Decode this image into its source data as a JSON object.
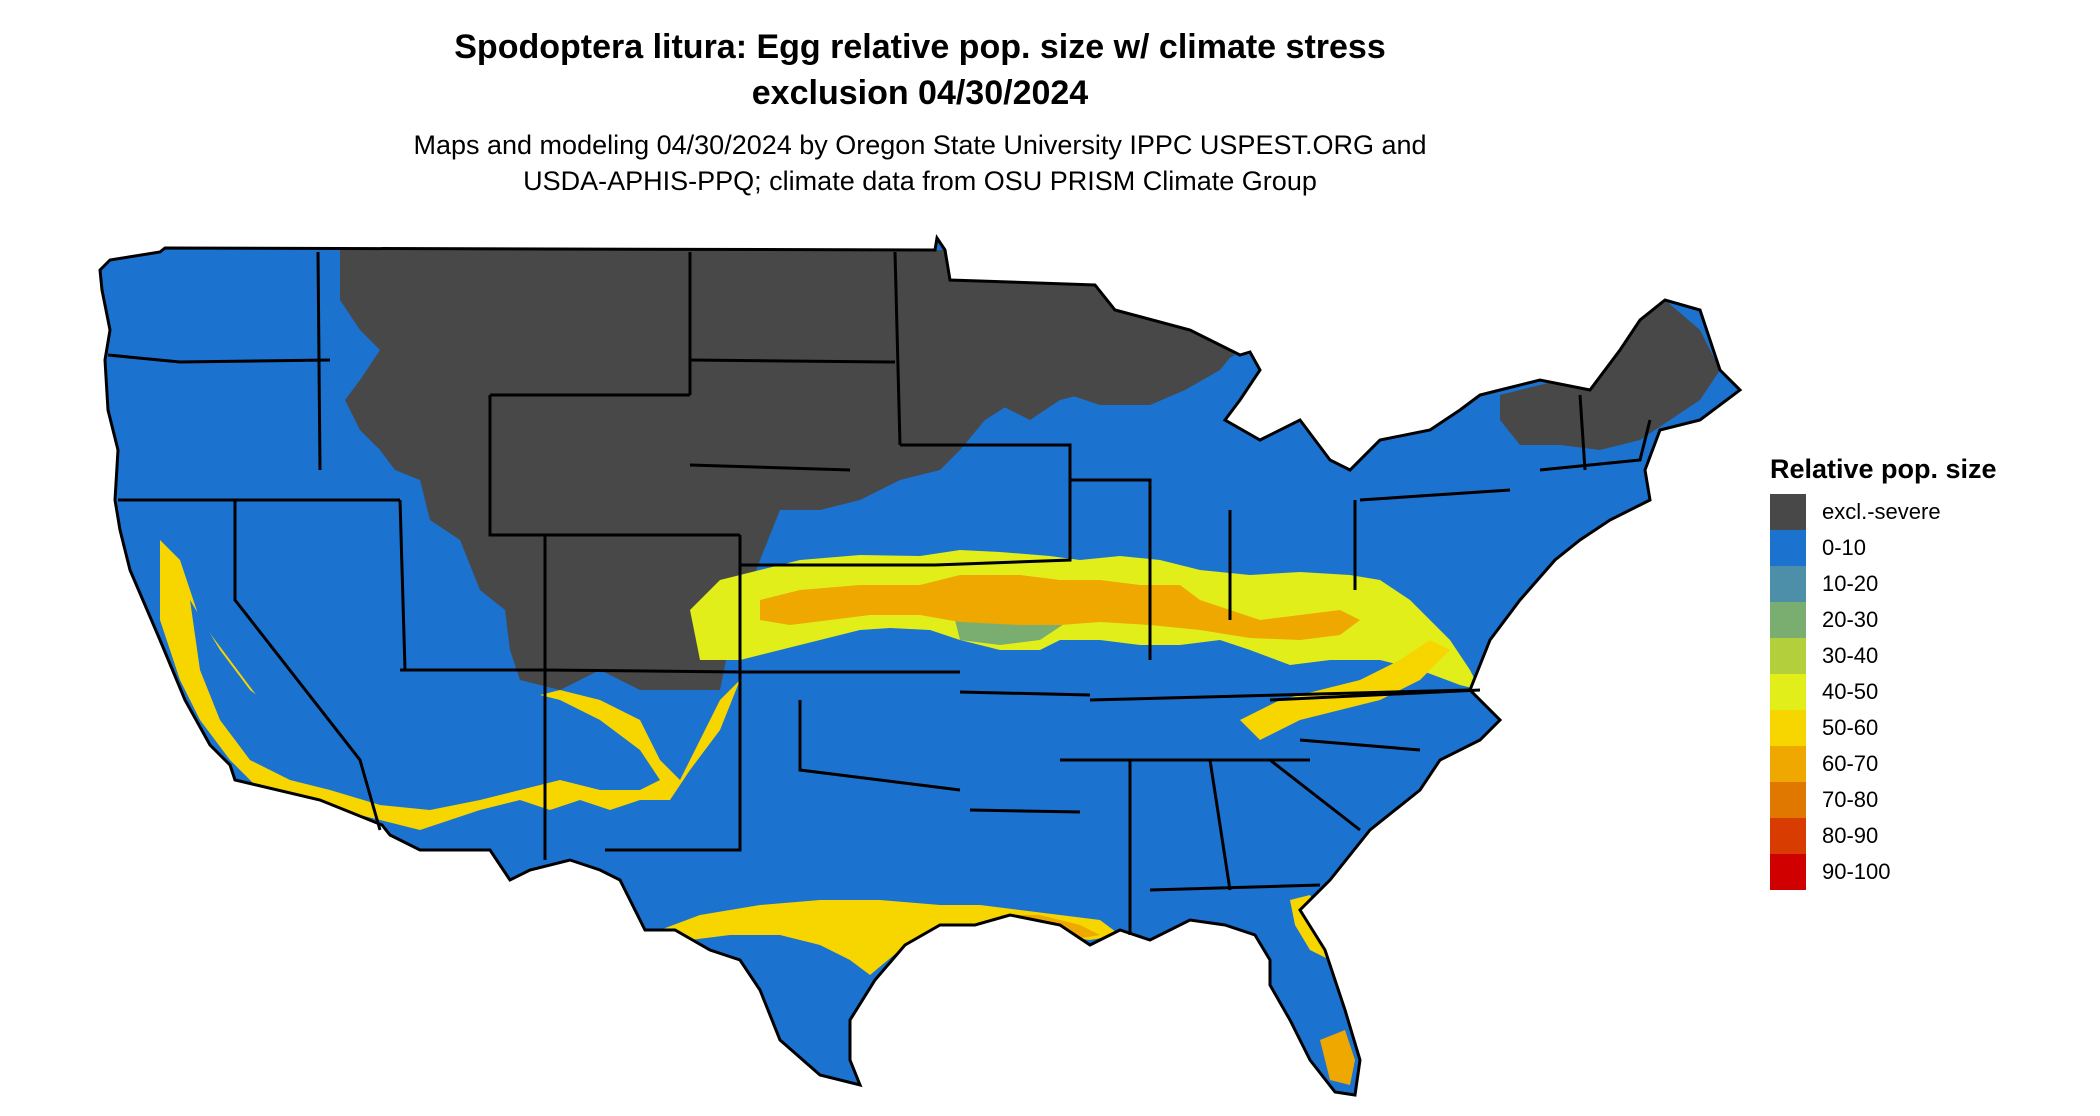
{
  "title": {
    "line1": "Spodoptera litura: Egg relative pop. size w/ climate stress",
    "line2": "exclusion 04/30/2024"
  },
  "subtitle": {
    "line1": "Maps and modeling 04/30/2024 by Oregon State University IPPC USPEST.ORG and",
    "line2": "USDA-APHIS-PPQ; climate data from OSU PRISM Climate Group"
  },
  "legend": {
    "title": "Relative pop. size",
    "items": [
      {
        "label": "excl.-severe",
        "color": "#484848"
      },
      {
        "label": "0-10",
        "color": "#1b72cf"
      },
      {
        "label": "10-20",
        "color": "#4d8fa8"
      },
      {
        "label": "20-30",
        "color": "#7aae70"
      },
      {
        "label": "30-40",
        "color": "#b3cf3c"
      },
      {
        "label": "40-50",
        "color": "#e1ee1a"
      },
      {
        "label": "50-60",
        "color": "#f7d600"
      },
      {
        "label": "60-70",
        "color": "#eea800"
      },
      {
        "label": "70-80",
        "color": "#e07800"
      },
      {
        "label": "80-90",
        "color": "#d93c00"
      },
      {
        "label": "90-100",
        "color": "#d10000"
      }
    ]
  }
}
